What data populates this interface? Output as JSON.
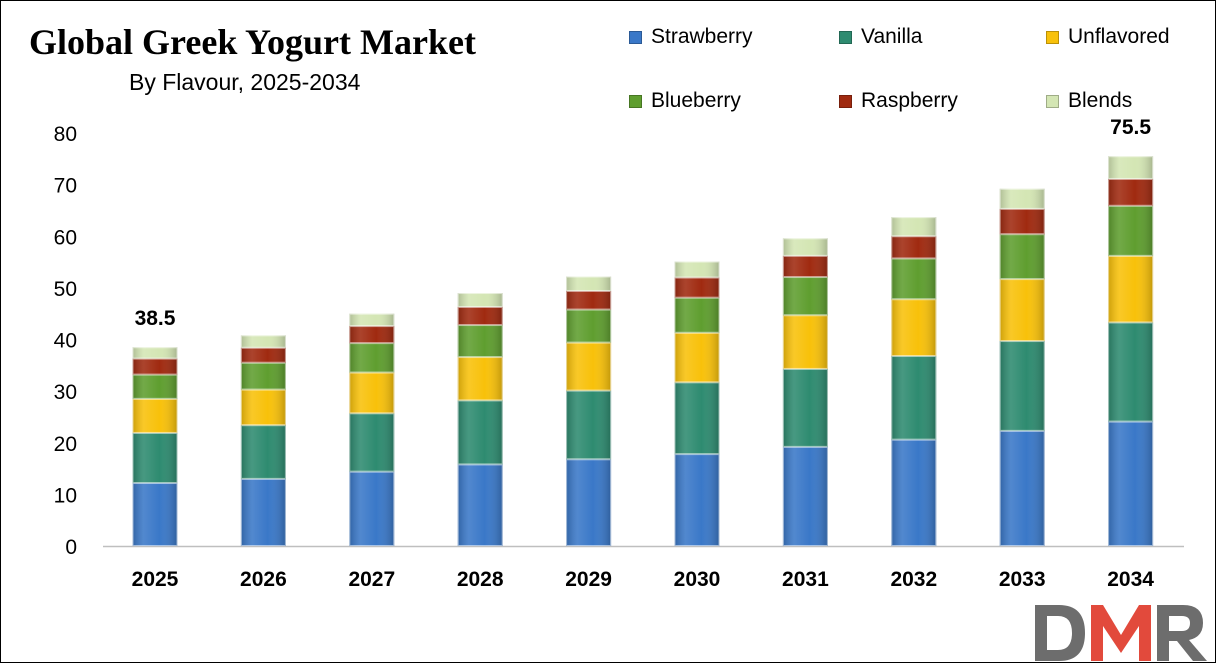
{
  "title": "Global Greek Yogurt Market",
  "subtitle": "By Flavour, 2025-2034",
  "logo_text": "DMR",
  "colors": {
    "strawberry": "#3a78c8",
    "vanilla": "#2e8b70",
    "unflavored": "#f8c10a",
    "blueberry": "#5f9e2f",
    "raspberry": "#a02a10",
    "blends": "#d4e6b4",
    "logo_red": "#e24a3c",
    "logo_gray": "#6d6d6d"
  },
  "chart_data": {
    "type": "bar",
    "stacked": true,
    "categories": [
      "2025",
      "2026",
      "2027",
      "2028",
      "2029",
      "2030",
      "2031",
      "2032",
      "2033",
      "2034"
    ],
    "ylim": [
      0,
      80
    ],
    "yticks": [
      0,
      10,
      20,
      30,
      40,
      50,
      60,
      70,
      80
    ],
    "grid": false,
    "legend_position": "top-right",
    "series": [
      {
        "name": "Strawberry",
        "color": "#3a78c8",
        "values": [
          12.2,
          13.0,
          14.4,
          15.8,
          16.8,
          17.8,
          19.2,
          20.6,
          22.3,
          24.1
        ]
      },
      {
        "name": "Vanilla",
        "color": "#2e8b70",
        "values": [
          9.7,
          10.4,
          11.3,
          12.4,
          13.3,
          13.9,
          15.1,
          16.2,
          17.4,
          19.2
        ]
      },
      {
        "name": "Unflavored",
        "color": "#f8c10a",
        "values": [
          6.6,
          6.9,
          7.9,
          8.4,
          9.3,
          9.6,
          10.4,
          11.0,
          12.0,
          12.9
        ]
      },
      {
        "name": "Blueberry",
        "color": "#5f9e2f",
        "values": [
          4.7,
          5.2,
          5.7,
          6.2,
          6.4,
          6.8,
          7.4,
          7.9,
          8.7,
          9.7
        ]
      },
      {
        "name": "Raspberry",
        "color": "#a02a10",
        "values": [
          3.1,
          2.9,
          3.3,
          3.5,
          3.6,
          3.9,
          4.1,
          4.3,
          4.9,
          5.2
        ]
      },
      {
        "name": "Blends",
        "color": "#d4e6b4",
        "values": [
          2.2,
          2.4,
          2.4,
          2.7,
          2.8,
          3.1,
          3.4,
          3.7,
          3.9,
          4.4
        ]
      }
    ],
    "data_labels": [
      {
        "category": "2025",
        "text": "38.5"
      },
      {
        "category": "2034",
        "text": "75.5"
      }
    ]
  }
}
